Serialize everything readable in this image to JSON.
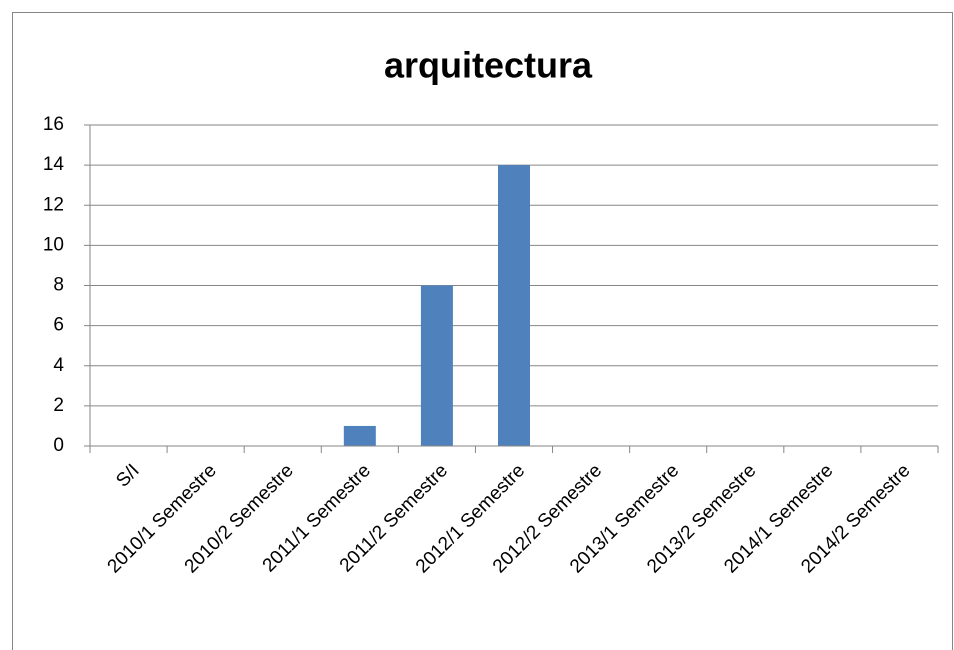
{
  "chart_data": {
    "type": "bar",
    "title": "arquitectura",
    "categories": [
      "S/I",
      "2010/1 Semestre",
      "2010/2 Semestre",
      "2011/1 Semestre",
      "2011/2 Semestre",
      "2012/1 Semestre",
      "2012/2 Semestre",
      "2013/1 Semestre",
      "2013/2 Semestre",
      "2014/1 Semestre",
      "2014/2 Semestre"
    ],
    "values": [
      0,
      0,
      0,
      1,
      8,
      14,
      0,
      0,
      0,
      0,
      0
    ],
    "color": "#4f81bd",
    "ylim": [
      0,
      16
    ],
    "yticks": [
      0,
      2,
      4,
      6,
      8,
      10,
      12,
      14,
      16
    ],
    "grid": true
  }
}
